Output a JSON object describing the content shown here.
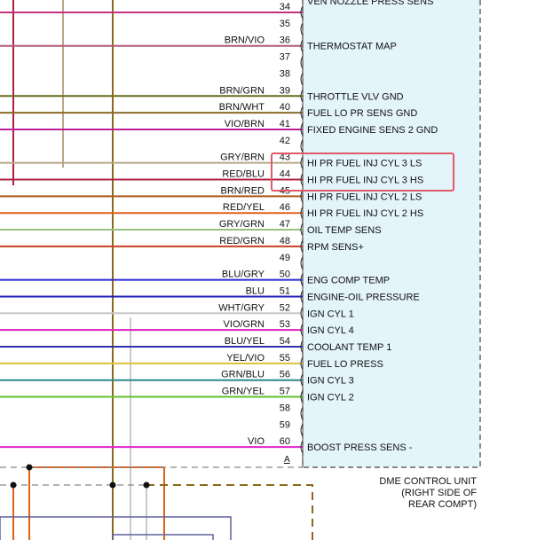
{
  "top_label": "VEN NOZZLE PRESS SENS",
  "unit_label": [
    "DME CONTROL UNIT",
    "(RIGHT SIDE OF",
    "REAR COMPT)"
  ],
  "connector_marker": "A",
  "highlight_color": "#e05a6a",
  "pins": [
    {
      "pin": "34",
      "wire": "",
      "desc": "",
      "color": "#c2327f"
    },
    {
      "pin": "35",
      "wire": "",
      "desc": "",
      "color": ""
    },
    {
      "pin": "36",
      "wire": "BRN/VIO",
      "desc": "THERMOSTAT MAP",
      "color": "#b05a7a"
    },
    {
      "pin": "37",
      "wire": "",
      "desc": "",
      "color": ""
    },
    {
      "pin": "38",
      "wire": "",
      "desc": "",
      "color": ""
    },
    {
      "pin": "39",
      "wire": "BRN/GRN",
      "desc": "THROTTLE VLV GND",
      "color": "#6b6b1f"
    },
    {
      "pin": "40",
      "wire": "BRN/WHT",
      "desc": "FUEL LO PR SENS GND",
      "color": "#8a6a2a"
    },
    {
      "pin": "41",
      "wire": "VIO/BRN",
      "desc": "FIXED ENGINE SENS 2 GND",
      "color": "#c01f9a"
    },
    {
      "pin": "42",
      "wire": "",
      "desc": "",
      "color": ""
    },
    {
      "pin": "43",
      "wire": "GRY/BRN",
      "desc": "HI PR FUEL INJ CYL 3 LS",
      "color": "#b8a888"
    },
    {
      "pin": "44",
      "wire": "RED/BLU",
      "desc": "HI PR FUEL INJ CYL 3 HS",
      "color": "#b02040"
    },
    {
      "pin": "45",
      "wire": "BRN/RED",
      "desc": "HI PR FUEL INJ CYL 2 LS",
      "color": "#a85a1a"
    },
    {
      "pin": "46",
      "wire": "RED/YEL",
      "desc": "HI PR FUEL INJ CYL 2 HS",
      "color": "#e0601a"
    },
    {
      "pin": "47",
      "wire": "GRY/GRN",
      "desc": "OIL TEMP SENS",
      "color": "#98c080"
    },
    {
      "pin": "48",
      "wire": "RED/GRN",
      "desc": "RPM SENS+",
      "color": "#c84020"
    },
    {
      "pin": "49",
      "wire": "",
      "desc": "",
      "color": ""
    },
    {
      "pin": "50",
      "wire": "BLU/GRY",
      "desc": "ENG COMP TEMP",
      "color": "#2a2ad0"
    },
    {
      "pin": "51",
      "wire": "BLU",
      "desc": "ENGINE-OIL PRESSURE",
      "color": "#1a1ab8"
    },
    {
      "pin": "52",
      "wire": "WHT/GRY",
      "desc": "IGN CYL 1",
      "color": "#c8c8c8"
    },
    {
      "pin": "53",
      "wire": "VIO/GRN",
      "desc": "IGN CYL 4",
      "color": "#e020c0"
    },
    {
      "pin": "54",
      "wire": "BLU/YEL",
      "desc": "COOLANT TEMP 1",
      "color": "#3030b0"
    },
    {
      "pin": "55",
      "wire": "YEL/VIO",
      "desc": "FUEL LO PRESS",
      "color": "#d8c040"
    },
    {
      "pin": "56",
      "wire": "GRN/BLU",
      "desc": "IGN CYL 3",
      "color": "#2a8a8a"
    },
    {
      "pin": "57",
      "wire": "GRN/YEL",
      "desc": "IGN CYL 2",
      "color": "#60c030"
    },
    {
      "pin": "58",
      "wire": "",
      "desc": "",
      "color": ""
    },
    {
      "pin": "59",
      "wire": "",
      "desc": "",
      "color": ""
    },
    {
      "pin": "60",
      "wire": "VIO",
      "desc": "BOOST PRESS SENS -",
      "color": "#e020d0"
    }
  ]
}
